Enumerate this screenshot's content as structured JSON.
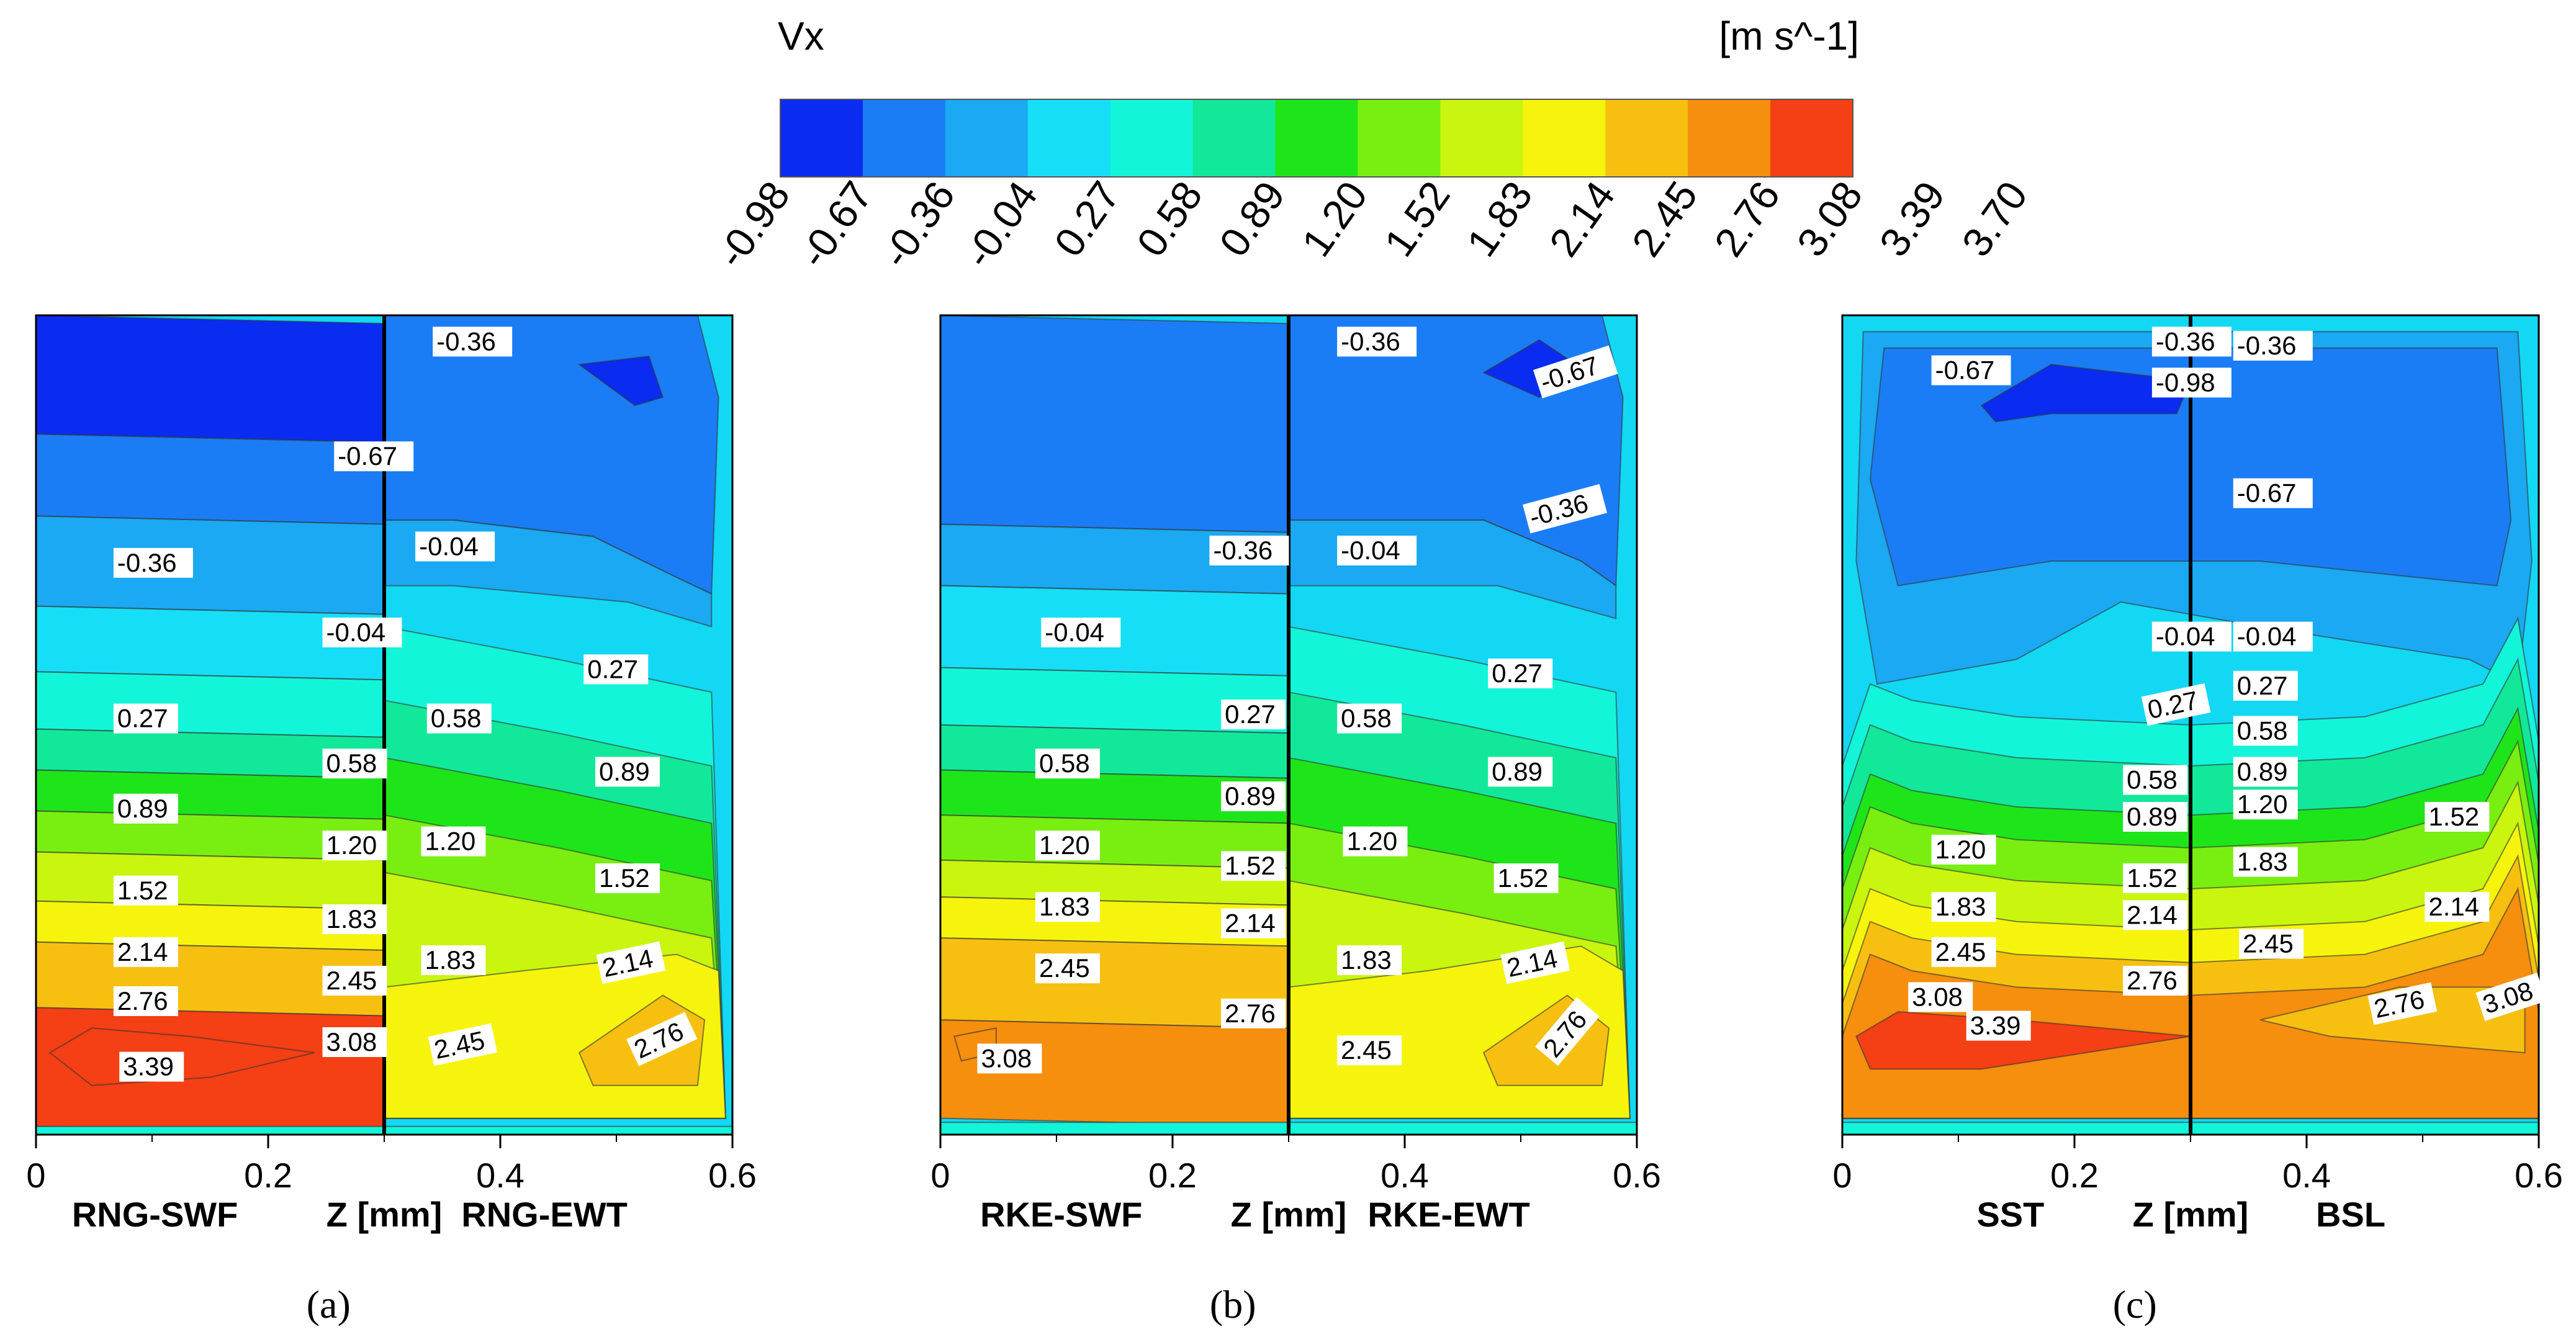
{
  "chart_data": {
    "type": "contour",
    "variable": "Vx",
    "unit": "[m s^-1]",
    "levels": [
      "-0.98",
      "-0.67",
      "-0.36",
      "-0.04",
      "0.27",
      "0.58",
      "0.89",
      "1.20",
      "1.52",
      "1.83",
      "2.14",
      "2.45",
      "2.76",
      "3.08",
      "3.39",
      "3.70"
    ],
    "band_colors": [
      "#0a2cf0",
      "#1a7df5",
      "#1aa9f2",
      "#16def6",
      "#13f5d8",
      "#12e89a",
      "#1ee51a",
      "#78ef10",
      "#c9f50e",
      "#f6f40c",
      "#f7c010",
      "#f68e0e",
      "#f53f14"
    ],
    "background_color": "#12d8f4",
    "xaxis": {
      "label": "Z [mm]",
      "ticks": [
        "0",
        "0.2",
        "0.4",
        "0.6"
      ],
      "range": [
        0,
        0.6
      ],
      "divider": 0.3
    },
    "panels": [
      {
        "caption": "(a)",
        "left_model": "RNG-SWF",
        "right_model": "RNG-EWT",
        "left": {
          "bottom": 3.0,
          "row": [
            [
              "-0.98",
              "-0.67",
              "-0.36",
              "-0.04",
              "0.27",
              "0.58",
              "0.89",
              "1.20",
              "1.52",
              "1.83",
              "2.14",
              "2.45",
              "2.76",
              "3.08",
              "3.39"
            ]
          ]
        },
        "labels": [
          {
            "t": "-0.36",
            "x": 0.345,
            "y": 0.02,
            "r": 0
          },
          {
            "t": "-0.67",
            "x": 0.26,
            "y": 0.16,
            "r": 0
          },
          {
            "t": "-0.36",
            "x": 0.07,
            "y": 0.29,
            "r": 0
          },
          {
            "t": "-0.04",
            "x": 0.33,
            "y": 0.27,
            "r": 0
          },
          {
            "t": "-0.04",
            "x": 0.25,
            "y": 0.375,
            "r": 0
          },
          {
            "t": "0.27",
            "x": 0.475,
            "y": 0.42,
            "r": 0
          },
          {
            "t": "0.27",
            "x": 0.07,
            "y": 0.48,
            "r": 0
          },
          {
            "t": "0.58",
            "x": 0.34,
            "y": 0.48,
            "r": 0
          },
          {
            "t": "0.58",
            "x": 0.25,
            "y": 0.535,
            "r": 0
          },
          {
            "t": "0.89",
            "x": 0.485,
            "y": 0.545,
            "r": 0
          },
          {
            "t": "0.89",
            "x": 0.07,
            "y": 0.59,
            "r": 0
          },
          {
            "t": "1.20",
            "x": 0.25,
            "y": 0.635,
            "r": 0
          },
          {
            "t": "1.20",
            "x": 0.335,
            "y": 0.63,
            "r": 0
          },
          {
            "t": "1.52",
            "x": 0.485,
            "y": 0.675,
            "r": 0
          },
          {
            "t": "1.52",
            "x": 0.07,
            "y": 0.69,
            "r": 0
          },
          {
            "t": "1.83",
            "x": 0.25,
            "y": 0.725,
            "r": 0
          },
          {
            "t": "1.83",
            "x": 0.335,
            "y": 0.775,
            "r": 0
          },
          {
            "t": "2.14",
            "x": 0.49,
            "y": 0.785,
            "r": -12
          },
          {
            "t": "2.14",
            "x": 0.07,
            "y": 0.765,
            "r": 0
          },
          {
            "t": "2.45",
            "x": 0.25,
            "y": 0.8,
            "r": 0
          },
          {
            "t": "2.76",
            "x": 0.07,
            "y": 0.825,
            "r": 0
          },
          {
            "t": "3.08",
            "x": 0.25,
            "y": 0.875,
            "r": 0
          },
          {
            "t": "2.45",
            "x": 0.345,
            "y": 0.885,
            "r": -12
          },
          {
            "t": "2.76",
            "x": 0.52,
            "y": 0.885,
            "r": -25
          },
          {
            "t": "3.39",
            "x": 0.075,
            "y": 0.905,
            "r": 0
          }
        ]
      },
      {
        "caption": "(b)",
        "left_model": "RKE-SWF",
        "right_model": "RKE-EWT",
        "labels": [
          {
            "t": "-0.36",
            "x": 0.345,
            "y": 0.02,
            "r": 0
          },
          {
            "t": "-0.67",
            "x": 0.52,
            "y": 0.07,
            "r": -18
          },
          {
            "t": "-0.36",
            "x": 0.235,
            "y": 0.275,
            "r": 0
          },
          {
            "t": "-0.36",
            "x": 0.51,
            "y": 0.235,
            "r": -15
          },
          {
            "t": "-0.04",
            "x": 0.345,
            "y": 0.275,
            "r": 0
          },
          {
            "t": "-0.04",
            "x": 0.09,
            "y": 0.375,
            "r": 0
          },
          {
            "t": "0.27",
            "x": 0.475,
            "y": 0.425,
            "r": 0
          },
          {
            "t": "0.27",
            "x": 0.245,
            "y": 0.475,
            "r": 0
          },
          {
            "t": "0.58",
            "x": 0.345,
            "y": 0.48,
            "r": 0
          },
          {
            "t": "0.58",
            "x": 0.085,
            "y": 0.535,
            "r": 0
          },
          {
            "t": "0.89",
            "x": 0.245,
            "y": 0.575,
            "r": 0
          },
          {
            "t": "0.89",
            "x": 0.475,
            "y": 0.545,
            "r": 0
          },
          {
            "t": "1.20",
            "x": 0.085,
            "y": 0.635,
            "r": 0
          },
          {
            "t": "1.52",
            "x": 0.245,
            "y": 0.66,
            "r": 0
          },
          {
            "t": "1.20",
            "x": 0.35,
            "y": 0.63,
            "r": 0
          },
          {
            "t": "1.52",
            "x": 0.48,
            "y": 0.675,
            "r": 0
          },
          {
            "t": "1.83",
            "x": 0.085,
            "y": 0.71,
            "r": 0
          },
          {
            "t": "2.14",
            "x": 0.245,
            "y": 0.73,
            "r": 0
          },
          {
            "t": "1.83",
            "x": 0.345,
            "y": 0.775,
            "r": 0
          },
          {
            "t": "2.14",
            "x": 0.49,
            "y": 0.785,
            "r": -12
          },
          {
            "t": "2.45",
            "x": 0.085,
            "y": 0.785,
            "r": 0
          },
          {
            "t": "2.76",
            "x": 0.245,
            "y": 0.84,
            "r": 0
          },
          {
            "t": "2.45",
            "x": 0.345,
            "y": 0.885,
            "r": 0
          },
          {
            "t": "2.76",
            "x": 0.53,
            "y": 0.885,
            "r": -50
          },
          {
            "t": "3.08",
            "x": 0.035,
            "y": 0.895,
            "r": 0
          }
        ]
      },
      {
        "caption": "(c)",
        "left_model": "SST",
        "right_model": "BSL",
        "labels": [
          {
            "t": "-0.36",
            "x": 0.27,
            "y": 0.02,
            "r": 0
          },
          {
            "t": "-0.36",
            "x": 0.34,
            "y": 0.025,
            "r": 0
          },
          {
            "t": "-0.67",
            "x": 0.08,
            "y": 0.055,
            "r": 0
          },
          {
            "t": "-0.98",
            "x": 0.27,
            "y": 0.07,
            "r": 0
          },
          {
            "t": "-0.67",
            "x": 0.34,
            "y": 0.205,
            "r": 0
          },
          {
            "t": "-0.04",
            "x": 0.27,
            "y": 0.38,
            "r": 0
          },
          {
            "t": "-0.04",
            "x": 0.34,
            "y": 0.38,
            "r": 0
          },
          {
            "t": "0.27",
            "x": 0.34,
            "y": 0.44,
            "r": 0
          },
          {
            "t": "0.27",
            "x": 0.265,
            "y": 0.47,
            "r": -12
          },
          {
            "t": "0.58",
            "x": 0.34,
            "y": 0.495,
            "r": 0
          },
          {
            "t": "0.89",
            "x": 0.34,
            "y": 0.545,
            "r": 0
          },
          {
            "t": "0.58",
            "x": 0.245,
            "y": 0.555,
            "r": 0
          },
          {
            "t": "1.20",
            "x": 0.34,
            "y": 0.585,
            "r": 0
          },
          {
            "t": "0.89",
            "x": 0.245,
            "y": 0.6,
            "r": 0
          },
          {
            "t": "1.52",
            "x": 0.505,
            "y": 0.6,
            "r": 0
          },
          {
            "t": "1.20",
            "x": 0.08,
            "y": 0.64,
            "r": 0
          },
          {
            "t": "1.83",
            "x": 0.34,
            "y": 0.655,
            "r": 0
          },
          {
            "t": "1.52",
            "x": 0.245,
            "y": 0.675,
            "r": 0
          },
          {
            "t": "2.14",
            "x": 0.505,
            "y": 0.71,
            "r": 0
          },
          {
            "t": "1.83",
            "x": 0.08,
            "y": 0.71,
            "r": 0
          },
          {
            "t": "2.14",
            "x": 0.245,
            "y": 0.72,
            "r": 0
          },
          {
            "t": "2.45",
            "x": 0.08,
            "y": 0.765,
            "r": 0
          },
          {
            "t": "2.45",
            "x": 0.345,
            "y": 0.755,
            "r": 0
          },
          {
            "t": "2.76",
            "x": 0.245,
            "y": 0.8,
            "r": 0
          },
          {
            "t": "3.08",
            "x": 0.06,
            "y": 0.82,
            "r": 0
          },
          {
            "t": "3.39",
            "x": 0.11,
            "y": 0.855,
            "r": 0
          },
          {
            "t": "2.76",
            "x": 0.46,
            "y": 0.835,
            "r": -12
          },
          {
            "t": "3.08",
            "x": 0.555,
            "y": 0.83,
            "r": -18
          }
        ]
      }
    ]
  }
}
